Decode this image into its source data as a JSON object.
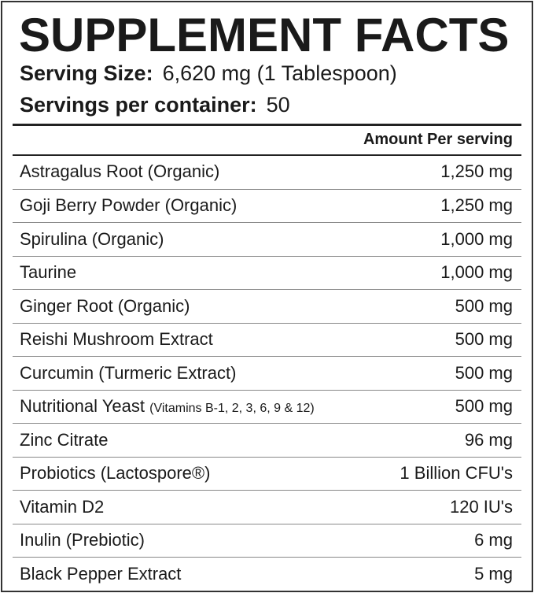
{
  "title": "SUPPLEMENT FACTS",
  "serving_size": {
    "label": "Serving Size:",
    "value": "6,620 mg (1 Tablespoon)"
  },
  "servings_per_container": {
    "label": "Servings per container:",
    "value": "50"
  },
  "column_header": "Amount Per serving",
  "ingredients": [
    {
      "name": "Astragalus Root (Organic)",
      "note": "",
      "amount": "1,250 mg"
    },
    {
      "name": "Goji Berry Powder (Organic)",
      "note": "",
      "amount": "1,250 mg"
    },
    {
      "name": "Spirulina (Organic)",
      "note": "",
      "amount": "1,000 mg"
    },
    {
      "name": "Taurine",
      "note": "",
      "amount": "1,000 mg"
    },
    {
      "name": "Ginger Root (Organic)",
      "note": "",
      "amount": "500 mg"
    },
    {
      "name": "Reishi Mushroom Extract",
      "note": "",
      "amount": "500 mg"
    },
    {
      "name": "Curcumin (Turmeric Extract)",
      "note": "",
      "amount": "500 mg"
    },
    {
      "name": "Nutritional Yeast",
      "note": "(Vitamins B-1, 2, 3, 6, 9 & 12)",
      "amount": "500 mg"
    },
    {
      "name": "Zinc Citrate",
      "note": "",
      "amount": "96 mg"
    },
    {
      "name": "Probiotics (Lactospore®)",
      "note": "",
      "amount": "1 Billion CFU's"
    },
    {
      "name": "Vitamin D2",
      "note": "",
      "amount": "120 IU's"
    },
    {
      "name": "Inulin (Prebiotic)",
      "note": "",
      "amount": "6 mg"
    },
    {
      "name": "Black Pepper Extract",
      "note": "",
      "amount": "5 mg"
    }
  ]
}
